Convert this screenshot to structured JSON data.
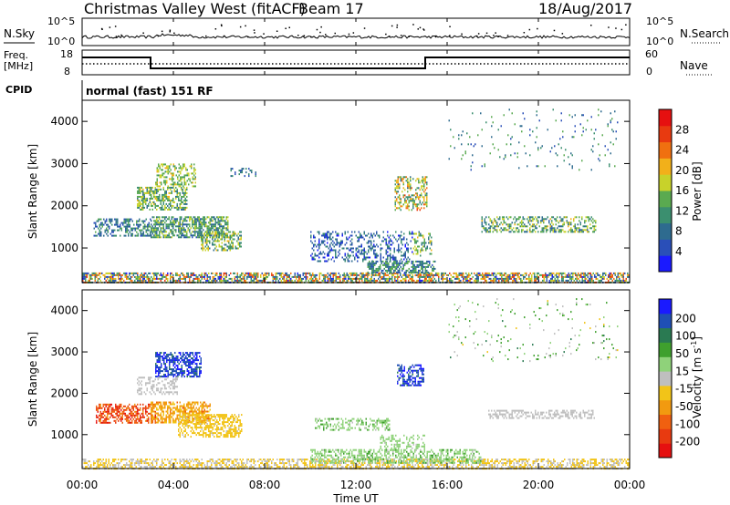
{
  "header": {
    "title": "Christmas Valley West (fitACF)",
    "beam": "Beam 17",
    "date": "18/Aug/2017"
  },
  "nsky_panel": {
    "left_label": "N.Sky",
    "right_label": "N.Search",
    "left_ticks": [
      "10^5",
      "10^0"
    ],
    "right_ticks": [
      "10^5",
      "10^0"
    ]
  },
  "freq_panel": {
    "left_label_1": "Freq.",
    "left_label_2": "[MHz]",
    "right_label": "Nave",
    "left_ticks": [
      "18",
      "8"
    ],
    "right_ticks": [
      "60",
      "0"
    ],
    "cpid_label": "CPID",
    "cpid_text": "normal (fast) 151 RF"
  },
  "x_axis": {
    "label": "Time UT",
    "ticks": [
      "00:00",
      "04:00",
      "08:00",
      "12:00",
      "16:00",
      "20:00",
      "00:00"
    ]
  },
  "colors": {
    "power_scale": [
      "#1a1aff",
      "#2a4fb8",
      "#2e6b8f",
      "#3b8f6f",
      "#5aaa50",
      "#c8d22a",
      "#f2b01a",
      "#f07010",
      "#e83a10",
      "#e61010"
    ],
    "velocity_scale": [
      "#1a1aff",
      "#1f4fb5",
      "#2a7a52",
      "#3fa02e",
      "#8fd27a",
      "#bfbfbf",
      "#f2c418",
      "#f29a10",
      "#f06010",
      "#e83a10",
      "#e61010"
    ]
  },
  "chart_data": [
    {
      "type": "heatmap",
      "title": "Power",
      "ylabel": "Slant Range [km]",
      "xlabel": "",
      "y_ticks": [
        "1000",
        "2000",
        "3000",
        "4000"
      ],
      "ylim": [
        180,
        4500
      ],
      "xlim_hours": [
        0,
        24
      ],
      "colorbar": {
        "label": "Power [dB]",
        "ticks": [
          "4",
          "8",
          "12",
          "16",
          "20",
          "24",
          "28"
        ],
        "range": [
          0,
          32
        ]
      },
      "regions": [
        {
          "t": [
            0.0,
            24.0
          ],
          "r": [
            180,
            420
          ],
          "density": 0.65,
          "values": [
            2,
            28
          ]
        },
        {
          "t": [
            0.5,
            3.0
          ],
          "r": [
            1300,
            1700
          ],
          "density": 0.45,
          "values": [
            4,
            14
          ]
        },
        {
          "t": [
            2.4,
            4.6
          ],
          "r": [
            1900,
            2450
          ],
          "density": 0.55,
          "values": [
            8,
            20
          ]
        },
        {
          "t": [
            3.2,
            5.0
          ],
          "r": [
            2450,
            3000
          ],
          "density": 0.4,
          "values": [
            12,
            20
          ]
        },
        {
          "t": [
            3.0,
            6.4
          ],
          "r": [
            1250,
            1750
          ],
          "density": 0.65,
          "values": [
            6,
            18
          ]
        },
        {
          "t": [
            5.2,
            7.0
          ],
          "r": [
            950,
            1400
          ],
          "density": 0.55,
          "values": [
            8,
            20
          ]
        },
        {
          "t": [
            6.5,
            7.6
          ],
          "r": [
            2700,
            2900
          ],
          "density": 0.25,
          "values": [
            4,
            12
          ]
        },
        {
          "t": [
            10.0,
            14.5
          ],
          "r": [
            700,
            1400
          ],
          "density": 0.35,
          "values": [
            2,
            12
          ]
        },
        {
          "t": [
            12.5,
            15.5
          ],
          "r": [
            400,
            700
          ],
          "density": 0.6,
          "values": [
            4,
            16
          ]
        },
        {
          "t": [
            13.7,
            15.1
          ],
          "r": [
            1900,
            2700
          ],
          "density": 0.4,
          "values": [
            8,
            26
          ]
        },
        {
          "t": [
            14.5,
            15.3
          ],
          "r": [
            800,
            1400
          ],
          "density": 0.3,
          "values": [
            8,
            20
          ]
        },
        {
          "t": [
            17.5,
            22.5
          ],
          "r": [
            1400,
            1750
          ],
          "density": 0.45,
          "values": [
            6,
            20
          ]
        },
        {
          "t": [
            16.0,
            23.5
          ],
          "r": [
            2800,
            4300
          ],
          "density": 0.04,
          "values": [
            4,
            16
          ]
        }
      ]
    },
    {
      "type": "heatmap",
      "title": "Velocity",
      "ylabel": "Slant Range [km]",
      "xlabel": "Time UT",
      "y_ticks": [
        "1000",
        "2000",
        "3000",
        "4000"
      ],
      "ylim": [
        180,
        4500
      ],
      "xlim_hours": [
        0,
        24
      ],
      "colorbar": {
        "label": "Velocity [m s^-1]",
        "ticks": [
          "200",
          "100",
          "50",
          "15",
          "-15",
          "-50",
          "-100",
          "-200"
        ],
        "range": [
          -250,
          250
        ]
      },
      "regions": [
        {
          "t": [
            0.0,
            24.0
          ],
          "r": [
            180,
            420
          ],
          "density": 0.55,
          "values": [
            -40,
            -10
          ]
        },
        {
          "t": [
            10.0,
            17.5
          ],
          "r": [
            300,
            650
          ],
          "density": 0.5,
          "values": [
            20,
            80
          ]
        },
        {
          "t": [
            0.6,
            3.2
          ],
          "r": [
            1300,
            1750
          ],
          "density": 0.6,
          "values": [
            -230,
            -100
          ]
        },
        {
          "t": [
            3.0,
            5.6
          ],
          "r": [
            1300,
            1800
          ],
          "density": 0.6,
          "values": [
            -120,
            -40
          ]
        },
        {
          "t": [
            3.2,
            5.2
          ],
          "r": [
            2400,
            3000
          ],
          "density": 0.6,
          "values": [
            150,
            240
          ]
        },
        {
          "t": [
            2.4,
            4.2
          ],
          "r": [
            2000,
            2400
          ],
          "density": 0.45,
          "values": [
            -10,
            10
          ]
        },
        {
          "t": [
            4.2,
            7.0
          ],
          "r": [
            950,
            1500
          ],
          "density": 0.55,
          "values": [
            -60,
            -20
          ]
        },
        {
          "t": [
            10.2,
            13.5
          ],
          "r": [
            1100,
            1400
          ],
          "density": 0.4,
          "values": [
            20,
            80
          ]
        },
        {
          "t": [
            13.0,
            15.0
          ],
          "r": [
            600,
            1000
          ],
          "density": 0.35,
          "values": [
            20,
            60
          ]
        },
        {
          "t": [
            13.8,
            15.0
          ],
          "r": [
            2200,
            2700
          ],
          "density": 0.5,
          "values": [
            150,
            240
          ]
        },
        {
          "t": [
            17.8,
            22.5
          ],
          "r": [
            1400,
            1600
          ],
          "density": 0.45,
          "values": [
            -10,
            10
          ]
        },
        {
          "t": [
            16.0,
            23.5
          ],
          "r": [
            2800,
            4300
          ],
          "density": 0.04,
          "values": [
            -30,
            120
          ]
        }
      ]
    }
  ]
}
